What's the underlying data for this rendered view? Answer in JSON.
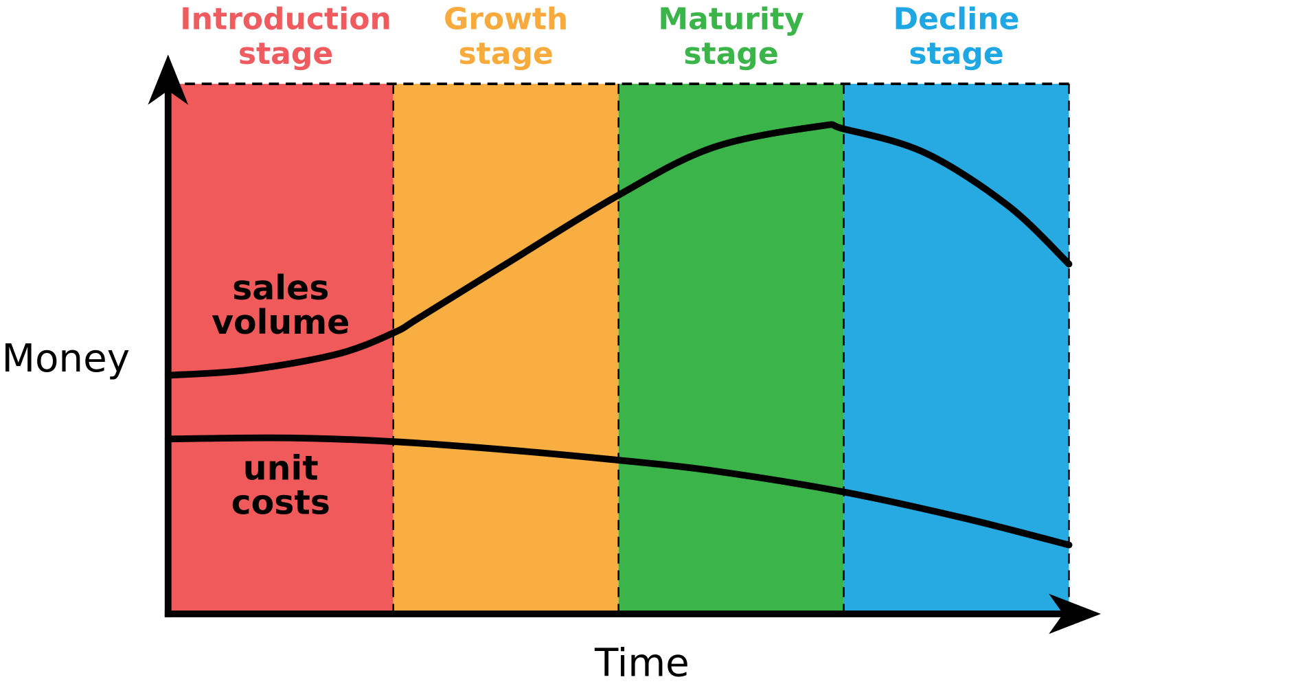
{
  "chart_data": {
    "type": "line",
    "title": "",
    "xlabel": "Time",
    "ylabel": "Money",
    "xlim": [
      0,
      4
    ],
    "ylim": [
      0,
      100
    ],
    "grid": false,
    "stages": [
      {
        "label_line1": "Introduction",
        "label_line2": "stage",
        "color": "#f05a5a",
        "text_color": "#ef5b5e"
      },
      {
        "label_line1": "Growth",
        "label_line2": "stage",
        "color": "#f9ae42",
        "text_color": "#f9aa3c"
      },
      {
        "label_line1": "Maturity",
        "label_line2": "stage",
        "color": "#3bb54a",
        "text_color": "#3bb54a"
      },
      {
        "label_line1": "Decline",
        "label_line2": "stage",
        "color": "#27a9e1",
        "text_color": "#1fa7e4"
      }
    ],
    "series": [
      {
        "name": "sales volume",
        "label_line1": "sales",
        "label_line2": "volume",
        "x": [
          0,
          0.35,
          0.75,
          1.0,
          1.12,
          1.5,
          2.0,
          2.42,
          2.89,
          3.0,
          3.36,
          3.73,
          4.0
        ],
        "y": [
          45,
          46,
          49,
          53,
          56,
          66,
          79,
          88,
          92,
          91.5,
          87,
          77,
          66
        ]
      },
      {
        "name": "unit costs",
        "label_line1": "unit",
        "label_line2": "costs",
        "x": [
          0,
          0.54,
          1.0,
          1.49,
          2.0,
          2.42,
          3.0,
          3.54,
          4.0
        ],
        "y": [
          33,
          33.2,
          32.5,
          31,
          29,
          27,
          23,
          18,
          13
        ]
      }
    ]
  }
}
